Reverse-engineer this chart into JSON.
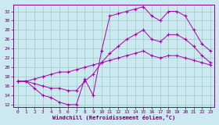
{
  "xlabel": "Windchill (Refroidissement éolien,°C)",
  "bg_color": "#cce8f0",
  "line_color": "#aa00aa",
  "grid_color": "#99ccbb",
  "xlim": [
    -0.5,
    23.5
  ],
  "ylim": [
    11.5,
    33.5
  ],
  "xticks": [
    0,
    1,
    2,
    3,
    4,
    5,
    6,
    7,
    8,
    9,
    10,
    11,
    12,
    13,
    14,
    15,
    16,
    17,
    18,
    19,
    20,
    21,
    22,
    23
  ],
  "yticks": [
    12,
    14,
    16,
    18,
    20,
    22,
    24,
    26,
    28,
    30,
    32
  ],
  "line1_x": [
    0,
    1,
    2,
    3,
    4,
    5,
    6,
    7,
    8,
    9,
    10,
    11,
    12,
    13,
    14,
    15,
    16,
    17,
    18,
    19,
    20,
    21,
    22,
    23
  ],
  "line1_y": [
    17,
    17,
    15.5,
    14,
    13.5,
    12.5,
    12,
    12,
    17.5,
    14,
    23.5,
    31,
    31.5,
    32,
    32.5,
    33,
    31,
    30,
    32,
    32,
    31,
    28,
    25,
    23.5
  ],
  "line2_x": [
    0,
    1,
    2,
    3,
    4,
    5,
    6,
    7,
    8,
    9,
    10,
    11,
    12,
    13,
    14,
    15,
    16,
    17,
    18,
    19,
    20,
    21,
    22,
    23
  ],
  "line2_y": [
    17,
    17,
    16.5,
    16,
    15.5,
    15.5,
    15,
    15,
    17,
    18.5,
    21,
    23,
    24.5,
    26,
    27,
    28,
    26,
    25.5,
    27,
    27,
    26,
    24.5,
    22.5,
    21
  ],
  "line3_x": [
    0,
    1,
    2,
    3,
    4,
    5,
    6,
    7,
    8,
    9,
    10,
    11,
    12,
    13,
    14,
    15,
    16,
    17,
    18,
    19,
    20,
    21,
    22,
    23
  ],
  "line3_y": [
    17,
    17,
    17.5,
    18,
    18.5,
    19,
    19,
    19.5,
    20,
    20.5,
    21,
    21.5,
    22,
    22.5,
    23,
    23.5,
    22.5,
    22,
    22.5,
    22.5,
    22,
    21.5,
    21,
    20.5
  ]
}
